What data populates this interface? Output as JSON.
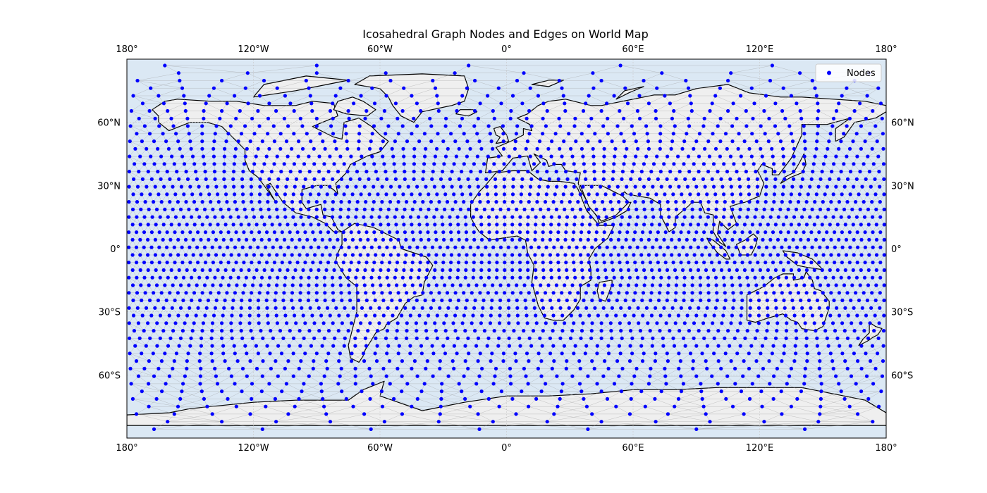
{
  "title": "Icosahedral Graph Nodes and Edges on World Map",
  "legend": {
    "label": "Nodes",
    "placement": "top-right"
  },
  "colors": {
    "ocean": "#dbe8f4",
    "land": "#efefef",
    "coastline": "#000000",
    "border": "#000000",
    "edge": "#9a9a9a",
    "node": "#0000ff",
    "gridline": "#c8c8c8"
  },
  "x_ticks": [
    "180°",
    "120°W",
    "60°W",
    "0°",
    "60°E",
    "120°E",
    "180°"
  ],
  "y_ticks_left": [
    "60°N",
    "30°N",
    "0°",
    "30°S",
    "60°S"
  ],
  "y_ticks_right": [
    "60°N",
    "30°N",
    "0°",
    "30°S",
    "60°S"
  ],
  "chart_data": {
    "type": "scatter",
    "projection": "PlateCarree",
    "x_range": [
      -180,
      180
    ],
    "y_range": [
      -90,
      90
    ],
    "x_tick_values": [
      -180,
      -120,
      -60,
      0,
      60,
      120,
      180
    ],
    "y_tick_values": [
      60,
      30,
      0,
      -30,
      -60
    ],
    "grid": true,
    "graph": "icosahedral mesh nodes with triangular edges"
  }
}
